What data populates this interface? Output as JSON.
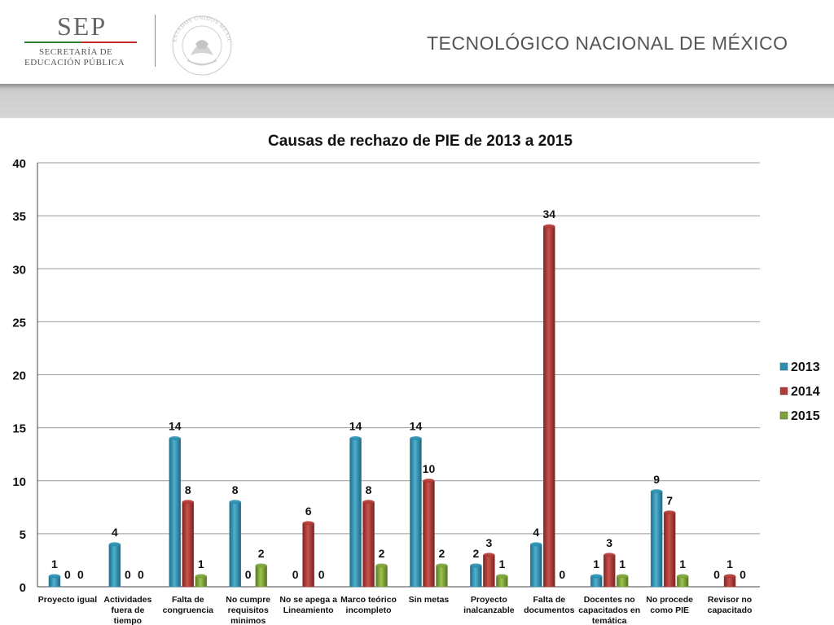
{
  "header": {
    "sep_title": "SEP",
    "sep_line1": "SECRETARÍA DE",
    "sep_line2": "EDUCACIÓN PÚBLICA",
    "seal_text": "ESTADOS UNIDOS MEXICANOS",
    "institution": "TECNOLÓGICO NACIONAL DE MÉXICO"
  },
  "colors": {
    "series_2013": "#2b8fb0",
    "series_2014": "#b03a36",
    "series_2015": "#7ea23a"
  },
  "chart_data": {
    "type": "bar",
    "title": "Causas de rechazo de PIE de 2013 a 2015",
    "xlabel": "",
    "ylabel": "",
    "ylim": [
      0,
      40
    ],
    "yticks": [
      0,
      5,
      10,
      15,
      20,
      25,
      30,
      35,
      40
    ],
    "grid": true,
    "legend": "right",
    "categories": [
      [
        "Proyecto igual"
      ],
      [
        "Actividades",
        "fuera de",
        "tiempo"
      ],
      [
        "Falta de",
        "congruencia"
      ],
      [
        "No cumpre",
        "requisitos",
        "minimos"
      ],
      [
        "No se apega a",
        "Lineamiento"
      ],
      [
        "Marco teórico",
        "incompleto"
      ],
      [
        "Sin metas"
      ],
      [
        "Proyecto",
        "inalcanzable"
      ],
      [
        "Falta de",
        "documentos"
      ],
      [
        "Docentes no",
        "capacitados en",
        "temática"
      ],
      [
        "No procede",
        "como PIE"
      ],
      [
        "Revisor no",
        "capacitado"
      ]
    ],
    "series": [
      {
        "name": "2013",
        "values": [
          1,
          4,
          14,
          8,
          0,
          14,
          14,
          2,
          4,
          1,
          9,
          0
        ]
      },
      {
        "name": "2014",
        "values": [
          0,
          0,
          8,
          0,
          6,
          8,
          10,
          3,
          34,
          3,
          7,
          1
        ]
      },
      {
        "name": "2015",
        "values": [
          0,
          0,
          1,
          2,
          0,
          2,
          2,
          1,
          0,
          1,
          1,
          0
        ]
      }
    ]
  }
}
